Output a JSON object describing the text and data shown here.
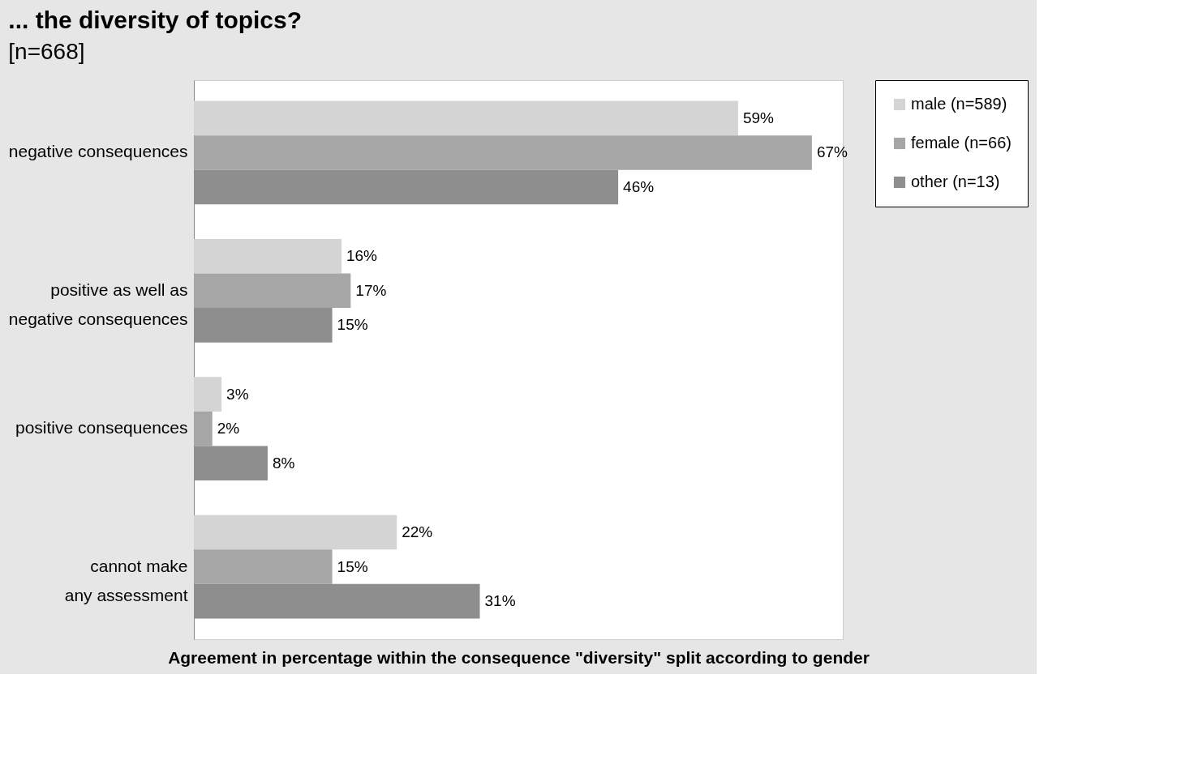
{
  "chart_data": {
    "type": "bar",
    "orientation": "horizontal",
    "title": "... the diversity of topics?",
    "subtitle": "[n=668]",
    "xlabel": "Agreement in percentage within the consequence \"diversity\" split according to gender",
    "categories": [
      "negative consequences",
      "positive as well as\nnegative consequences",
      "positive consequences",
      "cannot make\nany assessment"
    ],
    "series": [
      {
        "name": "male (n=589)",
        "color": "#d4d4d4",
        "values": [
          59,
          16,
          3,
          22
        ],
        "value_labels": [
          "59%",
          "16%",
          "3%",
          "22%"
        ]
      },
      {
        "name": "female (n=66)",
        "color": "#a6a6a6",
        "values": [
          67,
          17,
          2,
          15
        ],
        "value_labels": [
          "67%",
          "17%",
          "2%",
          "15%"
        ]
      },
      {
        "name": "other (n=13)",
        "color": "#8e8e8e",
        "values": [
          46,
          15,
          8,
          31
        ],
        "value_labels": [
          "46%",
          "15%",
          "8%",
          "31%"
        ]
      }
    ],
    "legend": "right",
    "grid": false,
    "tick_labels": "y"
  }
}
